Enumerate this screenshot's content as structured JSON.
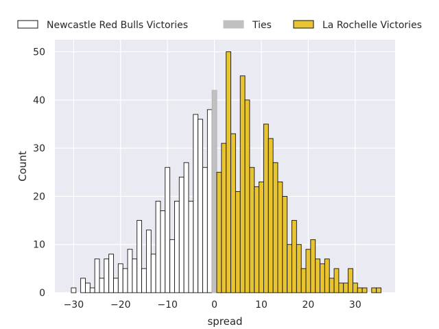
{
  "chart_data": {
    "type": "bar",
    "xlabel": "spread",
    "ylabel": "Count",
    "xlim": [
      -34,
      38.5
    ],
    "ylim": [
      0,
      52.5
    ],
    "xticks": [
      -30,
      -20,
      -10,
      0,
      10,
      20,
      30
    ],
    "yticks": [
      0,
      10,
      20,
      30,
      40,
      50
    ],
    "xtick_labels": [
      "−30",
      "−20",
      "−10",
      "0",
      "10",
      "20",
      "30"
    ],
    "ytick_labels": [
      "0",
      "10",
      "20",
      "30",
      "40",
      "50"
    ],
    "grid": true,
    "background": "#eaeaf2",
    "legend_position": "top, outside plot",
    "series": [
      {
        "name": "Newcastle Red Bulls Victories",
        "color": "#ffffff",
        "x": [
          -30,
          -29,
          -28,
          -27,
          -26,
          -25,
          -24,
          -23,
          -22,
          -21,
          -20,
          -19,
          -18,
          -17,
          -16,
          -15,
          -14,
          -13,
          -12,
          -11,
          -10,
          -9,
          -8,
          -7,
          -6,
          -5,
          -4,
          -3,
          -2,
          -1
        ],
        "values": [
          1,
          0,
          3,
          2,
          1,
          7,
          3,
          7,
          8,
          3,
          6,
          5,
          9,
          7,
          15,
          5,
          13,
          8,
          19,
          17,
          26,
          11,
          19,
          24,
          27,
          19,
          37,
          36,
          26,
          38
        ]
      },
      {
        "name": "Ties",
        "color": "#c0c0c0",
        "x": [
          0
        ],
        "values": [
          42
        ]
      },
      {
        "name": "La Rochelle Victories",
        "color": "#e8c530",
        "x": [
          1,
          2,
          3,
          4,
          5,
          6,
          7,
          8,
          9,
          10,
          11,
          12,
          13,
          14,
          15,
          16,
          17,
          18,
          19,
          20,
          21,
          22,
          23,
          24,
          25,
          26,
          27,
          28,
          29,
          30,
          31,
          32,
          33,
          34,
          35
        ],
        "values": [
          25,
          31,
          50,
          33,
          21,
          45,
          40,
          26,
          22,
          23,
          35,
          32,
          27,
          23,
          20,
          10,
          15,
          10,
          5,
          9,
          11,
          7,
          6,
          7,
          3,
          5,
          2,
          2,
          5,
          2,
          1,
          1,
          0,
          1,
          1
        ]
      }
    ]
  }
}
